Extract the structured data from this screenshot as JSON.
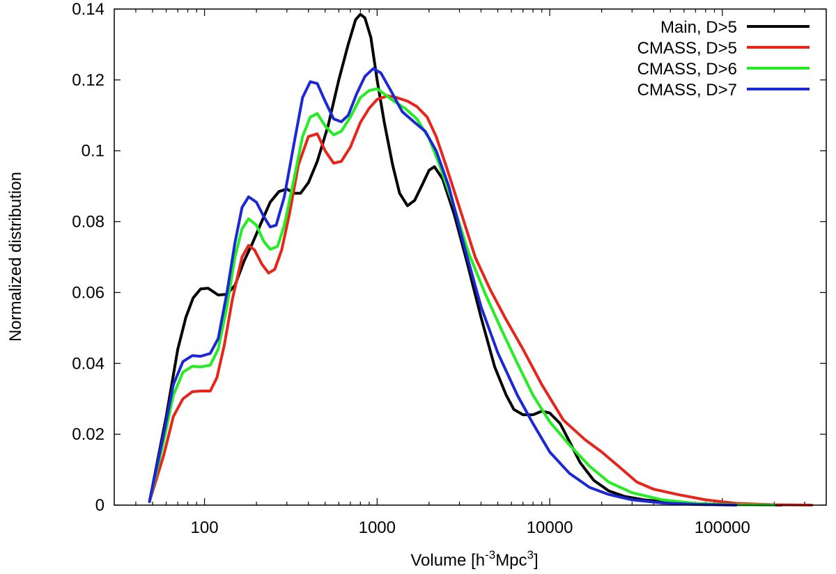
{
  "chart_data": {
    "type": "line",
    "title": "",
    "xlabel": "Volume [h",
    "xlabel_sup1": "-3",
    "xlabel_mid": "Mpc",
    "xlabel_sup2": "3",
    "xlabel_end": "]",
    "ylabel": "Normalized distribution",
    "xscale": "log",
    "xlim": [
      30,
      400000
    ],
    "ylim": [
      0,
      0.14
    ],
    "x_ticks": [
      100,
      1000,
      10000,
      100000
    ],
    "x_tick_labels": [
      "100",
      "1000",
      "10000",
      "100000"
    ],
    "y_ticks": [
      0,
      0.02,
      0.04,
      0.06,
      0.08,
      0.1,
      0.12,
      0.14
    ],
    "y_tick_labels": [
      "0",
      "0.02",
      "0.04",
      "0.06",
      "0.08",
      "0.1",
      "0.12",
      "0.14"
    ],
    "legend_position": "top-right",
    "series": [
      {
        "name": "Main, D>5",
        "color": "#000000",
        "points": [
          [
            48,
            0.001
          ],
          [
            60,
            0.025
          ],
          [
            70,
            0.044
          ],
          [
            78,
            0.053
          ],
          [
            86,
            0.0585
          ],
          [
            95,
            0.061
          ],
          [
            105,
            0.0612
          ],
          [
            120,
            0.0593
          ],
          [
            135,
            0.0595
          ],
          [
            150,
            0.062
          ],
          [
            170,
            0.069
          ],
          [
            190,
            0.074
          ],
          [
            210,
            0.079
          ],
          [
            240,
            0.0855
          ],
          [
            270,
            0.0885
          ],
          [
            300,
            0.0892
          ],
          [
            330,
            0.088
          ],
          [
            360,
            0.088
          ],
          [
            400,
            0.091
          ],
          [
            450,
            0.097
          ],
          [
            520,
            0.107
          ],
          [
            600,
            0.12
          ],
          [
            680,
            0.13
          ],
          [
            750,
            0.137
          ],
          [
            800,
            0.1385
          ],
          [
            850,
            0.1375
          ],
          [
            920,
            0.132
          ],
          [
            1000,
            0.12
          ],
          [
            1100,
            0.108
          ],
          [
            1230,
            0.096
          ],
          [
            1350,
            0.088
          ],
          [
            1500,
            0.0845
          ],
          [
            1650,
            0.086
          ],
          [
            1850,
            0.091
          ],
          [
            2000,
            0.0945
          ],
          [
            2150,
            0.0955
          ],
          [
            2400,
            0.092
          ],
          [
            2800,
            0.082
          ],
          [
            3300,
            0.069
          ],
          [
            4000,
            0.053
          ],
          [
            4800,
            0.039
          ],
          [
            5600,
            0.031
          ],
          [
            6200,
            0.027
          ],
          [
            7000,
            0.0255
          ],
          [
            8000,
            0.0255
          ],
          [
            9000,
            0.0265
          ],
          [
            10000,
            0.026
          ],
          [
            11500,
            0.023
          ],
          [
            13000,
            0.018
          ],
          [
            15000,
            0.012
          ],
          [
            18000,
            0.007
          ],
          [
            22000,
            0.004
          ],
          [
            27000,
            0.0025
          ],
          [
            35000,
            0.0015
          ],
          [
            50000,
            0.0008
          ],
          [
            80000,
            0.0003
          ],
          [
            150000,
            0.0001
          ],
          [
            220000,
            0.0
          ]
        ]
      },
      {
        "name": "CMASS, D>5",
        "color": "#e8241b",
        "points": [
          [
            48,
            0.001
          ],
          [
            58,
            0.014
          ],
          [
            66,
            0.025
          ],
          [
            75,
            0.03
          ],
          [
            85,
            0.032
          ],
          [
            95,
            0.0322
          ],
          [
            108,
            0.0322
          ],
          [
            118,
            0.036
          ],
          [
            130,
            0.045
          ],
          [
            145,
            0.058
          ],
          [
            165,
            0.07
          ],
          [
            180,
            0.0733
          ],
          [
            195,
            0.072
          ],
          [
            215,
            0.068
          ],
          [
            235,
            0.0655
          ],
          [
            255,
            0.0665
          ],
          [
            280,
            0.072
          ],
          [
            310,
            0.082
          ],
          [
            350,
            0.096
          ],
          [
            400,
            0.104
          ],
          [
            450,
            0.1048
          ],
          [
            500,
            0.1
          ],
          [
            560,
            0.0965
          ],
          [
            620,
            0.097
          ],
          [
            700,
            0.101
          ],
          [
            800,
            0.108
          ],
          [
            900,
            0.112
          ],
          [
            1000,
            0.1145
          ],
          [
            1150,
            0.1155
          ],
          [
            1300,
            0.115
          ],
          [
            1500,
            0.114
          ],
          [
            1700,
            0.1125
          ],
          [
            1950,
            0.1095
          ],
          [
            2200,
            0.104
          ],
          [
            2500,
            0.096
          ],
          [
            3000,
            0.084
          ],
          [
            3700,
            0.07
          ],
          [
            4500,
            0.061
          ],
          [
            5500,
            0.053
          ],
          [
            7000,
            0.044
          ],
          [
            9000,
            0.034
          ],
          [
            12000,
            0.024
          ],
          [
            16000,
            0.0185
          ],
          [
            20000,
            0.015
          ],
          [
            25000,
            0.011
          ],
          [
            32000,
            0.0065
          ],
          [
            40000,
            0.0045
          ],
          [
            55000,
            0.003
          ],
          [
            80000,
            0.0015
          ],
          [
            120000,
            0.0005
          ],
          [
            200000,
            0.0001
          ],
          [
            330000,
            0.0
          ]
        ]
      },
      {
        "name": "CMASS, D>6",
        "color": "#22ee22",
        "points": [
          [
            48,
            0.001
          ],
          [
            58,
            0.018
          ],
          [
            66,
            0.031
          ],
          [
            75,
            0.0375
          ],
          [
            85,
            0.0392
          ],
          [
            95,
            0.039
          ],
          [
            108,
            0.0395
          ],
          [
            120,
            0.044
          ],
          [
            135,
            0.056
          ],
          [
            150,
            0.07
          ],
          [
            165,
            0.078
          ],
          [
            180,
            0.0808
          ],
          [
            200,
            0.079
          ],
          [
            220,
            0.0745
          ],
          [
            240,
            0.0722
          ],
          [
            265,
            0.073
          ],
          [
            290,
            0.079
          ],
          [
            330,
            0.092
          ],
          [
            370,
            0.104
          ],
          [
            410,
            0.1095
          ],
          [
            450,
            0.1105
          ],
          [
            500,
            0.107
          ],
          [
            560,
            0.1045
          ],
          [
            620,
            0.1055
          ],
          [
            700,
            0.1095
          ],
          [
            800,
            0.115
          ],
          [
            900,
            0.117
          ],
          [
            1000,
            0.1175
          ],
          [
            1100,
            0.116
          ],
          [
            1250,
            0.114
          ],
          [
            1450,
            0.112
          ],
          [
            1700,
            0.109
          ],
          [
            2000,
            0.1035
          ],
          [
            2300,
            0.096
          ],
          [
            2800,
            0.084
          ],
          [
            3400,
            0.071
          ],
          [
            4200,
            0.06
          ],
          [
            5200,
            0.05
          ],
          [
            6500,
            0.04
          ],
          [
            8000,
            0.031
          ],
          [
            10000,
            0.0235
          ],
          [
            13000,
            0.017
          ],
          [
            17000,
            0.011
          ],
          [
            22000,
            0.0065
          ],
          [
            30000,
            0.0035
          ],
          [
            45000,
            0.0015
          ],
          [
            70000,
            0.0005
          ],
          [
            120000,
            0.0001
          ],
          [
            200000,
            0.0
          ]
        ]
      },
      {
        "name": "CMASS, D>7",
        "color": "#1c28d8",
        "points": [
          [
            48,
            0.001
          ],
          [
            58,
            0.02
          ],
          [
            66,
            0.034
          ],
          [
            75,
            0.0405
          ],
          [
            85,
            0.0422
          ],
          [
            95,
            0.042
          ],
          [
            108,
            0.0428
          ],
          [
            120,
            0.047
          ],
          [
            135,
            0.06
          ],
          [
            150,
            0.074
          ],
          [
            165,
            0.084
          ],
          [
            180,
            0.087
          ],
          [
            200,
            0.0855
          ],
          [
            220,
            0.0815
          ],
          [
            240,
            0.0785
          ],
          [
            260,
            0.079
          ],
          [
            290,
            0.087
          ],
          [
            330,
            0.102
          ],
          [
            370,
            0.115
          ],
          [
            410,
            0.1195
          ],
          [
            450,
            0.119
          ],
          [
            500,
            0.114
          ],
          [
            560,
            0.109
          ],
          [
            620,
            0.1082
          ],
          [
            680,
            0.11
          ],
          [
            760,
            0.116
          ],
          [
            850,
            0.121
          ],
          [
            950,
            0.1232
          ],
          [
            1050,
            0.122
          ],
          [
            1200,
            0.117
          ],
          [
            1400,
            0.111
          ],
          [
            1650,
            0.108
          ],
          [
            1900,
            0.1055
          ],
          [
            2200,
            0.1
          ],
          [
            2600,
            0.09
          ],
          [
            3200,
            0.073
          ],
          [
            4000,
            0.056
          ],
          [
            5000,
            0.043
          ],
          [
            6500,
            0.031
          ],
          [
            8000,
            0.023
          ],
          [
            10000,
            0.015
          ],
          [
            13000,
            0.009
          ],
          [
            17000,
            0.005
          ],
          [
            22000,
            0.003
          ],
          [
            30000,
            0.0015
          ],
          [
            45000,
            0.0006
          ],
          [
            70000,
            0.0002
          ],
          [
            120000,
            0.0
          ]
        ]
      }
    ]
  }
}
